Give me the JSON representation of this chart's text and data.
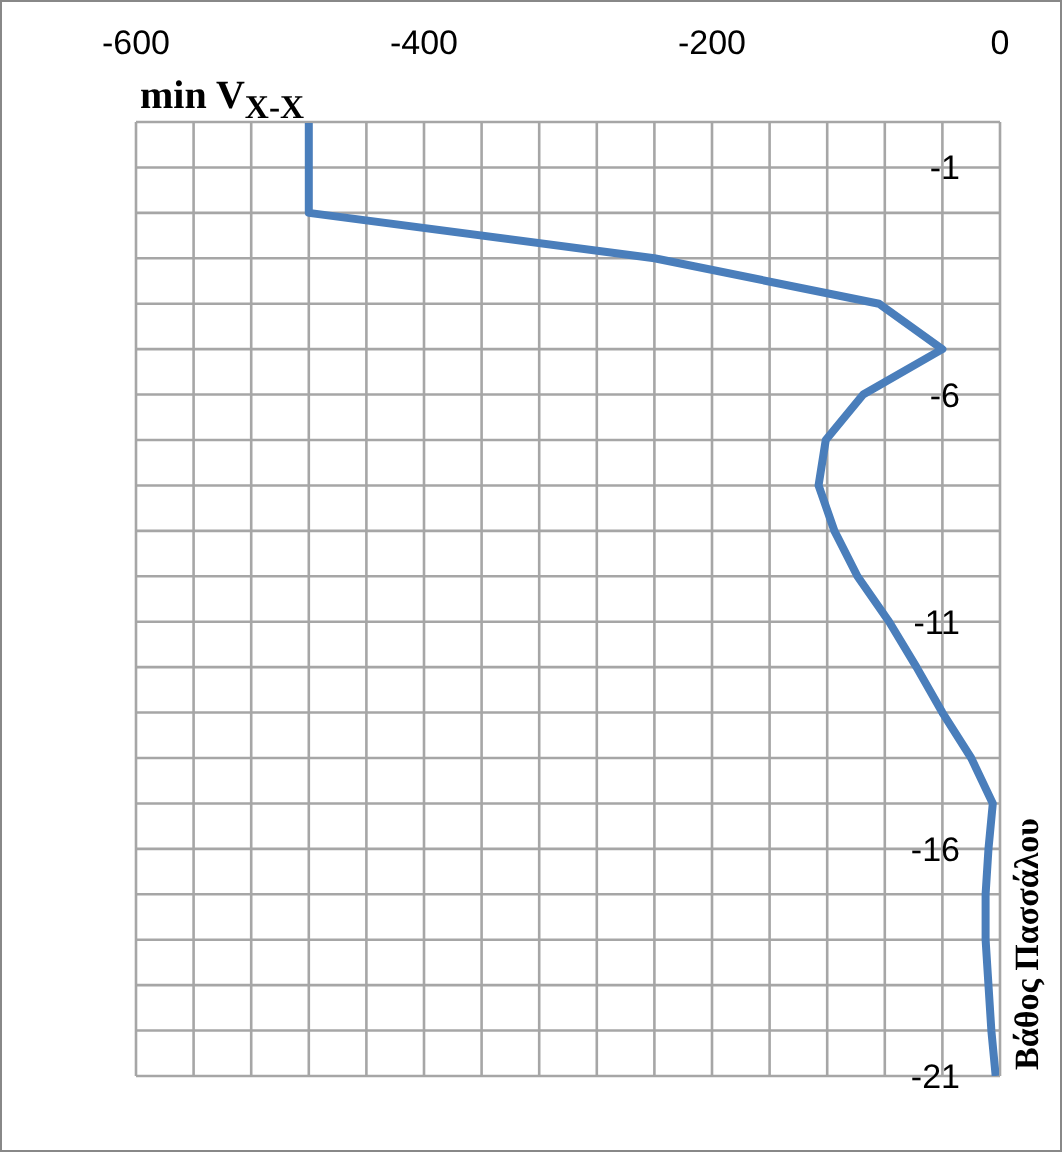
{
  "chart_data": {
    "type": "line",
    "title": "min V$_{X-X}$",
    "ylabel": "Βάθος Πασσάλου",
    "orientation": "horizontal",
    "x": [
      0,
      -1,
      -2,
      -3,
      -4,
      -5,
      -6,
      -7,
      -8,
      -9,
      -10,
      -11,
      -12,
      -13,
      -14,
      -15,
      -16,
      -17,
      -18,
      -19,
      -20,
      -21
    ],
    "series": [
      {
        "color": "#4a7ebb",
        "values": [
          -480,
          -480,
          -480,
          -240,
          -84,
          -40,
          -95,
          -121,
          -126,
          -115,
          -99,
          -77,
          -58,
          -40,
          -20,
          -5,
          -8,
          -10,
          -10,
          -8,
          -6,
          -3
        ]
      }
    ],
    "xlim": [
      -600,
      0
    ],
    "xticks": [
      -600,
      {
        "value": -560,
        "label": null
      },
      {
        "value": -520,
        "label": null
      },
      {
        "value": -480,
        "label": null
      },
      {
        "value": -440,
        "label": null
      },
      -400,
      {
        "value": -360,
        "label": null
      },
      {
        "value": -320,
        "label": null
      },
      {
        "value": -280,
        "label": null
      },
      {
        "value": -240,
        "label": null
      },
      -200,
      {
        "value": -160,
        "label": null
      },
      {
        "value": -120,
        "label": null
      },
      {
        "value": -80,
        "label": null
      },
      {
        "value": -40,
        "label": null
      },
      0
    ],
    "ylim": [
      -21,
      0
    ],
    "yticks": [
      {
        "value": 0,
        "label": null
      },
      -1,
      {
        "value": -2,
        "label": null
      },
      {
        "value": -3,
        "label": null
      },
      {
        "value": -4,
        "label": null
      },
      {
        "value": -5,
        "label": null
      },
      -6,
      {
        "value": -7,
        "label": null
      },
      {
        "value": -8,
        "label": null
      },
      {
        "value": -9,
        "label": null
      },
      {
        "value": -10,
        "label": null
      },
      -11,
      {
        "value": -12,
        "label": null
      },
      {
        "value": -13,
        "label": null
      },
      {
        "value": -14,
        "label": null
      },
      {
        "value": -15,
        "label": null
      },
      -16,
      {
        "value": -17,
        "label": null
      },
      {
        "value": -18,
        "label": null
      },
      {
        "value": -19,
        "label": null
      },
      {
        "value": -20,
        "label": null
      },
      -21
    ],
    "grid": true
  }
}
